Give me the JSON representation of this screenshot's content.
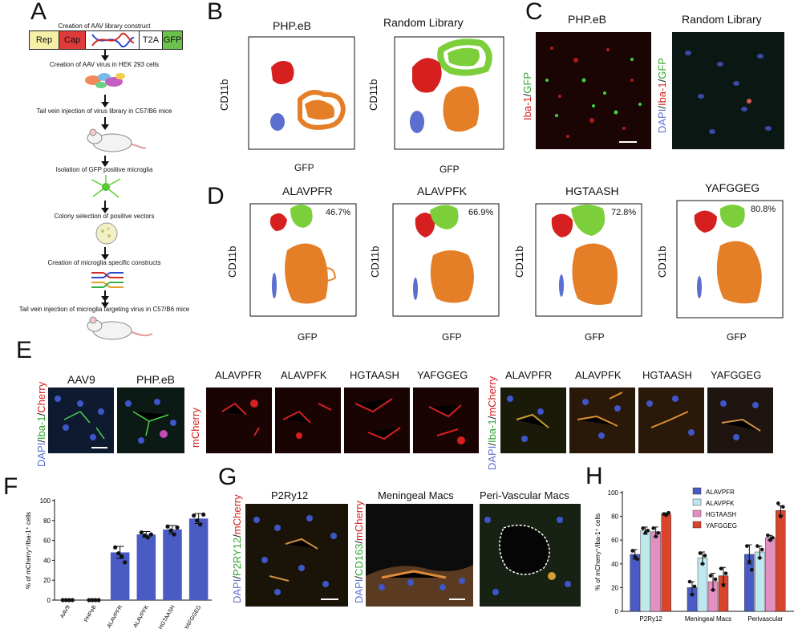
{
  "panels": {
    "a": "A",
    "b": "B",
    "c": "C",
    "d": "D",
    "e": "E",
    "f": "F",
    "g": "G",
    "h": "H"
  },
  "panelA": {
    "construct_title": "Creation of AAV library construct",
    "boxes": [
      "Rep",
      "Cap",
      "T2A",
      "GFP"
    ],
    "steps": [
      "Creation of AAV virus in HEK 293 cells",
      "Tail vein injection of virus library in C57/B6 mice",
      "Isolation of GFP positive microglia",
      "Colony selection of positive vectors",
      "Creation of microglia specific constructs",
      "Tail vein injection of microglia targeting virus in C57/B6 mice"
    ]
  },
  "panelB": {
    "titles": [
      "PHP.eB",
      "Random Library"
    ],
    "ylabel": "CD11b",
    "xlabel": "GFP"
  },
  "panelC": {
    "titles": [
      "PHP.eB",
      "Random Library"
    ],
    "label_left": {
      "a": "Iba-1",
      "b": "/",
      "c": "GFP"
    },
    "label_right": {
      "a": "DAPI",
      "b": "/",
      "c": "Iba-1",
      "d": "/",
      "e": "GFP"
    }
  },
  "panelD": {
    "titles": [
      "ALAVPFR",
      "ALAVPFK",
      "HGTAASH",
      "YAFGGEG"
    ],
    "percents": [
      "46.7%",
      "66.9%",
      "72.8%",
      "80.8%"
    ],
    "ylabel": "CD11b",
    "xlabel": "GFP"
  },
  "panelE": {
    "group1_titles": [
      "AAV9",
      "PHP.eB"
    ],
    "group1_label": {
      "a": "DAPI",
      "b": "/",
      "c": "Iba-1",
      "d": "/",
      "e": "Cherry"
    },
    "group2_titles": [
      "ALAVPFR",
      "ALAVPFK",
      "HGTAASH",
      "YAFGGEG"
    ],
    "group2_label": "mCherry",
    "group3_titles": [
      "ALAVPFR",
      "ALAVPFK",
      "HGTAASH",
      "YAFGGEG"
    ],
    "group3_label": {
      "a": "DAPI",
      "b": "/",
      "c": "Iba-1",
      "d": "/",
      "e": "mCherry"
    }
  },
  "panelG": {
    "titles": [
      "P2Ry12",
      "Meningeal Macs",
      "Peri-Vascular Macs"
    ],
    "label1": {
      "a": "DAPI",
      "b": "/",
      "c": "P2RY12",
      "d": "/",
      "e": "mCherry"
    },
    "label2": {
      "a": "DAPI",
      "b": "/",
      "c": "CD163",
      "d": "/",
      "e": "mCherry"
    }
  },
  "colors": {
    "red": "#d62020",
    "green": "#7ccf3a",
    "orange": "#e47f28",
    "blue": "#5b6fd0",
    "bar_blue": "#4a5bc4",
    "alavpfr": "#4a5bc4",
    "alavpfk": "#bfe7ee",
    "hgtaash": "#e48fc2",
    "yafggeg": "#d8452c"
  },
  "chart_data": [
    {
      "type": "bar",
      "ylabel": "% of mCherry⁺/Iba-1⁺ cells",
      "ylim": [
        0,
        100
      ],
      "yticks": [
        "0",
        "20",
        "40",
        "60",
        "80",
        "100"
      ],
      "categories": [
        "AAV9",
        "PHPeB",
        "ALAVPFR",
        "ALAVPFK",
        "HGTAASH",
        "YAFGGEG"
      ],
      "values": [
        0,
        0,
        48,
        66,
        71,
        82
      ],
      "errors": [
        0,
        0,
        6,
        3,
        4,
        5
      ],
      "points": [
        [
          0,
          0,
          0,
          0
        ],
        [
          0,
          0,
          0,
          0
        ],
        [
          53,
          47,
          44,
          38
        ],
        [
          68,
          65,
          63,
          66
        ],
        [
          74,
          70,
          66,
          73
        ],
        [
          85,
          80,
          76,
          86
        ]
      ]
    },
    {
      "type": "bar",
      "ylabel": "% of mCherry⁺/Iba-1⁺ cells",
      "ylim": [
        0,
        100
      ],
      "yticks": [
        "0",
        "20",
        "40",
        "60",
        "80",
        "100"
      ],
      "categories": [
        "P2Ry12",
        "Meningeal Macs",
        "Perivascular"
      ],
      "series": [
        {
          "name": "ALAVPFR",
          "values": [
            48,
            20,
            48
          ],
          "errors": [
            4,
            5,
            8
          ],
          "points": [
            [
              51,
              46,
              44
            ],
            [
              25,
              14,
              21
            ],
            [
              55,
              42,
              35
            ]
          ]
        },
        {
          "name": "ALAVPFK",
          "values": [
            68,
            45,
            50
          ],
          "errors": [
            3,
            5,
            5
          ],
          "points": [
            [
              70,
              66,
              68
            ],
            [
              49,
              40,
              47
            ],
            [
              55,
              45,
              52
            ]
          ]
        },
        {
          "name": "HGTAASH",
          "values": [
            67,
            25,
            62
          ],
          "errors": [
            4,
            7,
            2
          ],
          "points": [
            [
              70,
              63,
              66
            ],
            [
              30,
              18,
              27
            ],
            [
              64,
              60,
              62
            ]
          ]
        },
        {
          "name": "YAFGGEG",
          "values": [
            82,
            30,
            85
          ],
          "errors": [
            1,
            7,
            4
          ],
          "points": [
            [
              82,
              81,
              83
            ],
            [
              36,
              22,
              32
            ],
            [
              91,
              80,
              88
            ]
          ]
        }
      ]
    }
  ]
}
